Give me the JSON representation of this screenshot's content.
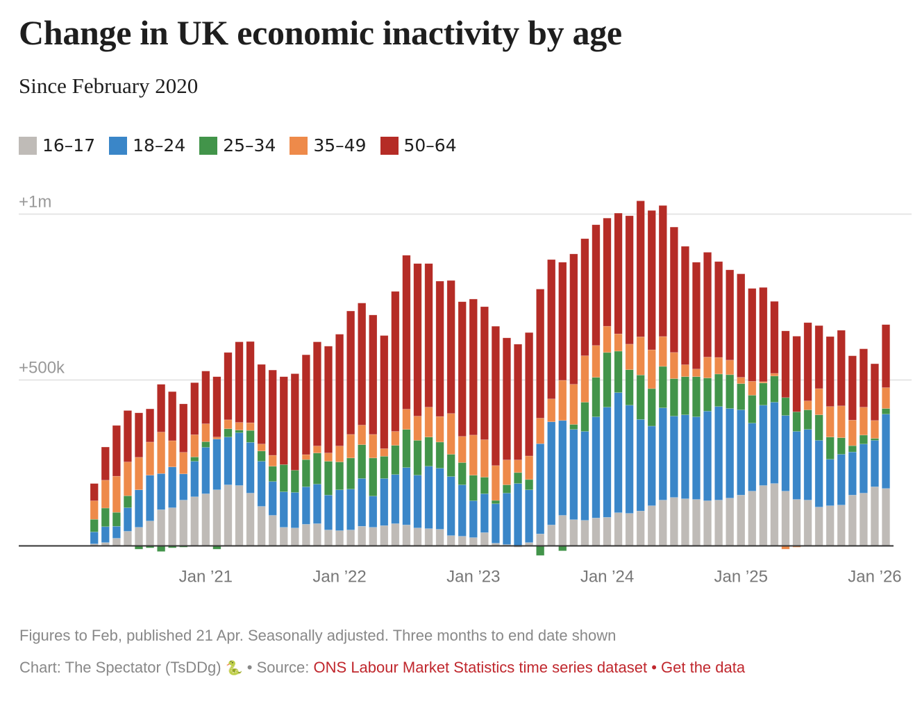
{
  "header": {
    "title": "Change in UK economic inactivity by age",
    "subtitle": "Since February 2020"
  },
  "legend": [
    {
      "label": "16–17",
      "color": "#bfbbb7"
    },
    {
      "label": "18–24",
      "color": "#3a86c8"
    },
    {
      "label": "25–34",
      "color": "#42944a"
    },
    {
      "label": "35–49",
      "color": "#ee8a4a"
    },
    {
      "label": "50–64",
      "color": "#b52c26"
    }
  ],
  "footer": {
    "note": "Figures to Feb, published 21 Apr. Seasonally adjusted. Three months to end date shown",
    "credit": "Chart: The Spectator (TsDDg)",
    "credit_icon": "snake-icon",
    "separator": "•",
    "source_prefix": "Source:",
    "source_link": "ONS Labour Market Statistics time series dataset",
    "data_link": "Get the data",
    "link_color": "#c0272d"
  },
  "chart_data": {
    "type": "bar",
    "stacked": true,
    "title": "Change in UK economic inactivity by age",
    "subtitle": "Since February 2020",
    "xlabel": "",
    "ylabel": "",
    "unit": "thousands",
    "ylim": [
      -60,
      1050
    ],
    "yticks": [
      {
        "value": 500,
        "label": "+500k"
      },
      {
        "value": 1000,
        "label": "+1m"
      }
    ],
    "grid": true,
    "legend_position": "top-left",
    "xticks": [
      {
        "index": 10,
        "label": "Jan ’21"
      },
      {
        "index": 22,
        "label": "Jan ’22"
      },
      {
        "index": 34,
        "label": "Jan ’23"
      },
      {
        "index": 46,
        "label": "Jan ’24"
      },
      {
        "index": 58,
        "label": "Jan ’25"
      },
      {
        "index": 70,
        "label": "Jan ’26"
      }
    ],
    "categories": [
      "Mar 2020",
      "Apr 2020",
      "May 2020",
      "Jun 2020",
      "Jul 2020",
      "Aug 2020",
      "Sep 2020",
      "Oct 2020",
      "Nov 2020",
      "Dec 2020",
      "Jan 2021",
      "Feb 2021",
      "Mar 2021",
      "Apr 2021",
      "May 2021",
      "Jun 2021",
      "Jul 2021",
      "Aug 2021",
      "Sep 2021",
      "Oct 2021",
      "Nov 2021",
      "Dec 2021",
      "Jan 2022",
      "Feb 2022",
      "Mar 2022",
      "Apr 2022",
      "May 2022",
      "Jun 2022",
      "Jul 2022",
      "Aug 2022",
      "Sep 2022",
      "Oct 2022",
      "Nov 2022",
      "Dec 2022",
      "Jan 2023",
      "Feb 2023",
      "Mar 2023",
      "Apr 2023",
      "May 2023",
      "Jun 2023",
      "Jul 2023",
      "Aug 2023",
      "Sep 2023",
      "Oct 2023",
      "Nov 2023",
      "Dec 2023",
      "Jan 2024",
      "Feb 2024",
      "Mar 2024",
      "Apr 2024",
      "May 2024",
      "Jun 2024",
      "Jul 2024",
      "Aug 2024",
      "Sep 2024",
      "Oct 2024",
      "Nov 2024",
      "Dec 2024",
      "Jan 2025",
      "Feb 2025",
      "Mar 2025",
      "Apr 2025",
      "May 2025",
      "Jun 2025",
      "Jul 2025",
      "Aug 2025",
      "Sep 2025",
      "Oct 2025",
      "Nov 2025",
      "Dec 2025",
      "Jan 2026",
      "Feb 2026"
    ],
    "series": [
      {
        "name": "16–17",
        "color": "#bfbbb7",
        "values": [
          6,
          10,
          23,
          44,
          56,
          75,
          109,
          115,
          138,
          148,
          157,
          169,
          184,
          182,
          159,
          119,
          92,
          56,
          54,
          65,
          67,
          48,
          46,
          48,
          59,
          56,
          61,
          67,
          63,
          54,
          52,
          50,
          31,
          29,
          25,
          40,
          8,
          4,
          -4,
          10,
          36,
          63,
          92,
          79,
          77,
          84,
          86,
          100,
          98,
          105,
          121,
          138,
          146,
          142,
          140,
          136,
          138,
          144,
          153,
          165,
          182,
          188,
          165,
          140,
          138,
          117,
          121,
          123,
          153,
          159,
          178,
          173
        ]
      },
      {
        "name": "18–24",
        "color": "#3a86c8",
        "values": [
          36,
          48,
          36,
          71,
          113,
          138,
          109,
          123,
          79,
          107,
          140,
          153,
          144,
          159,
          153,
          136,
          102,
          107,
          107,
          113,
          119,
          105,
          123,
          123,
          144,
          94,
          142,
          148,
          173,
          159,
          188,
          184,
          178,
          155,
          111,
          117,
          119,
          155,
          188,
          159,
          272,
          311,
          286,
          272,
          268,
          305,
          332,
          362,
          326,
          276,
          240,
          278,
          245,
          253,
          249,
          270,
          282,
          270,
          257,
          205,
          242,
          245,
          228,
          205,
          213,
          201,
          140,
          153,
          130,
          148,
          140,
          224
        ]
      },
      {
        "name": "25–34",
        "color": "#42944a",
        "values": [
          38,
          56,
          42,
          36,
          -10,
          -6,
          -17,
          -6,
          -4,
          13,
          17,
          -10,
          25,
          8,
          36,
          31,
          46,
          82,
          67,
          82,
          94,
          102,
          84,
          94,
          102,
          115,
          67,
          88,
          115,
          105,
          88,
          79,
          67,
          67,
          77,
          50,
          10,
          25,
          33,
          31,
          -29,
          0,
          -15,
          15,
          88,
          119,
          165,
          125,
          107,
          134,
          113,
          125,
          113,
          115,
          121,
          100,
          98,
          102,
          79,
          84,
          67,
          79,
          54,
          59,
          59,
          77,
          67,
          50,
          19,
          27,
          6,
          17
        ]
      },
      {
        "name": "35–49",
        "color": "#ee8a4a",
        "values": [
          56,
          84,
          109,
          102,
          98,
          100,
          125,
          79,
          65,
          67,
          54,
          6,
          27,
          23,
          23,
          21,
          33,
          0,
          0,
          15,
          21,
          25,
          48,
          71,
          59,
          71,
          23,
          42,
          61,
          73,
          90,
          77,
          123,
          79,
          121,
          113,
          105,
          75,
          38,
          71,
          77,
          69,
          121,
          121,
          140,
          96,
          79,
          52,
          77,
          115,
          117,
          90,
          79,
          36,
          23,
          63,
          50,
          44,
          19,
          42,
          4,
          8,
          -10,
          -4,
          27,
          79,
          92,
          96,
          77,
          84,
          54,
          63
        ]
      },
      {
        "name": "50–64",
        "color": "#b52c26",
        "values": [
          52,
          100,
          153,
          155,
          134,
          100,
          144,
          148,
          146,
          157,
          159,
          182,
          203,
          243,
          245,
          240,
          257,
          265,
          291,
          301,
          314,
          322,
          337,
          372,
          368,
          360,
          341,
          422,
          464,
          460,
          433,
          408,
          401,
          406,
          410,
          401,
          420,
          368,
          349,
          372,
          389,
          420,
          356,
          393,
          353,
          364,
          326,
          364,
          387,
          410,
          420,
          395,
          378,
          357,
          322,
          316,
          289,
          272,
          312,
          280,
          284,
          217,
          201,
          228,
          236,
          190,
          211,
          228,
          194,
          176,
          171,
          190
        ]
      }
    ]
  }
}
